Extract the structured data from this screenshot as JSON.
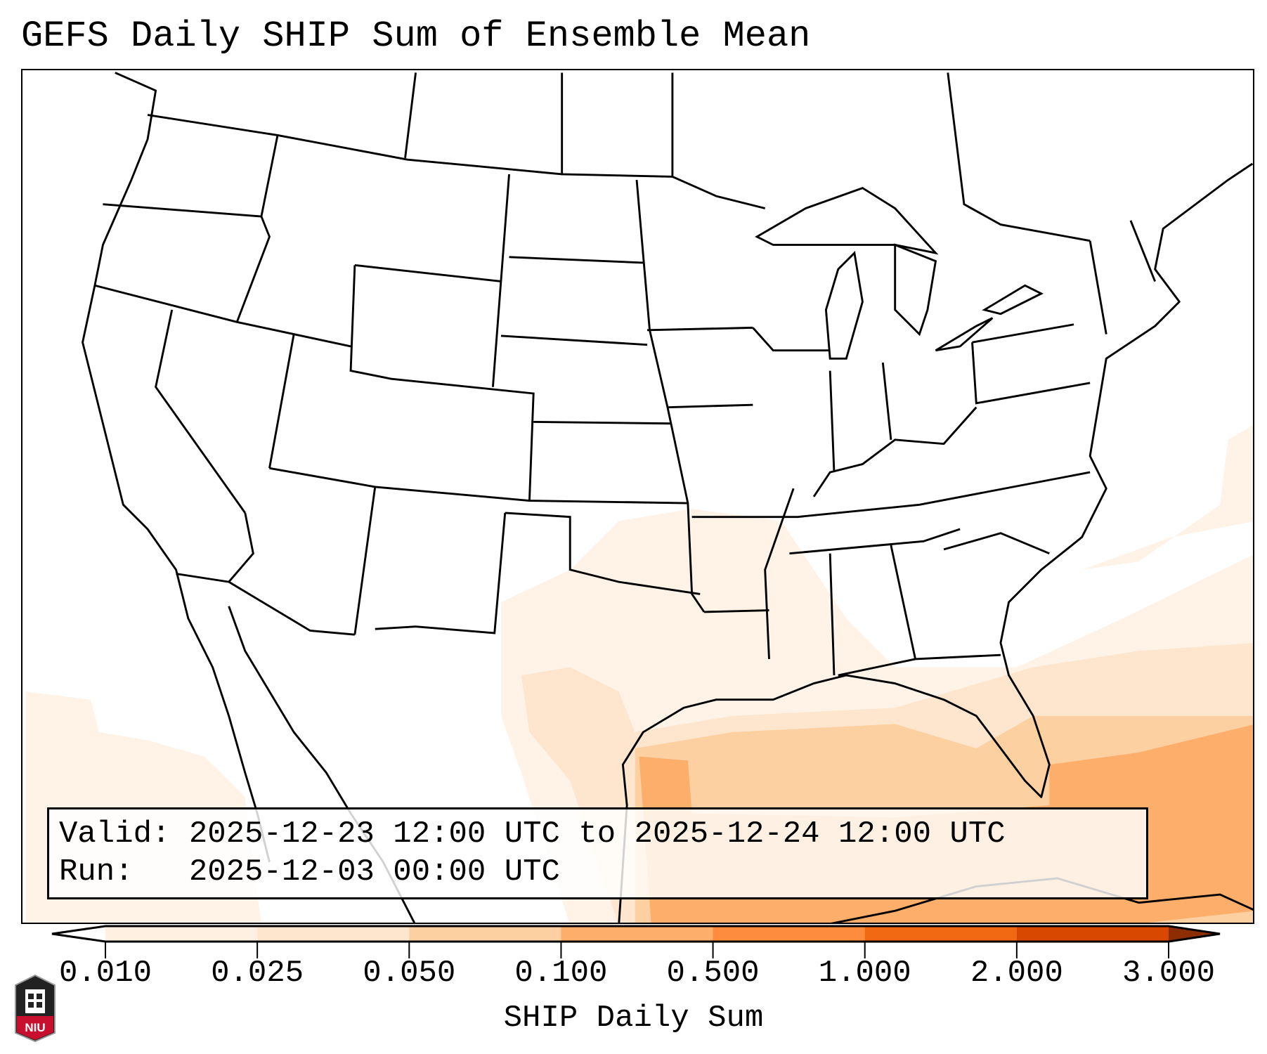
{
  "title": "GEFS Daily SHIP Sum of Ensemble Mean",
  "info": {
    "valid_label": "Valid:",
    "valid_value": "2025-12-23 12:00 UTC to 2025-12-24 12:00 UTC",
    "run_label": "Run:",
    "run_value": "2025-12-03 00:00 UTC"
  },
  "colorbar": {
    "label": "SHIP Daily Sum",
    "ticks": [
      "0.010",
      "0.025",
      "0.050",
      "0.100",
      "0.500",
      "1.000",
      "2.000",
      "3.000"
    ],
    "colors": [
      "#fff0e2",
      "#fee6ce",
      "#fdd0a2",
      "#fdae6b",
      "#fd8d3c",
      "#f16913",
      "#d94801"
    ],
    "over_color": "#8c2d04",
    "under_color": "#ffffff"
  },
  "logo": {
    "text": "NIU"
  }
}
